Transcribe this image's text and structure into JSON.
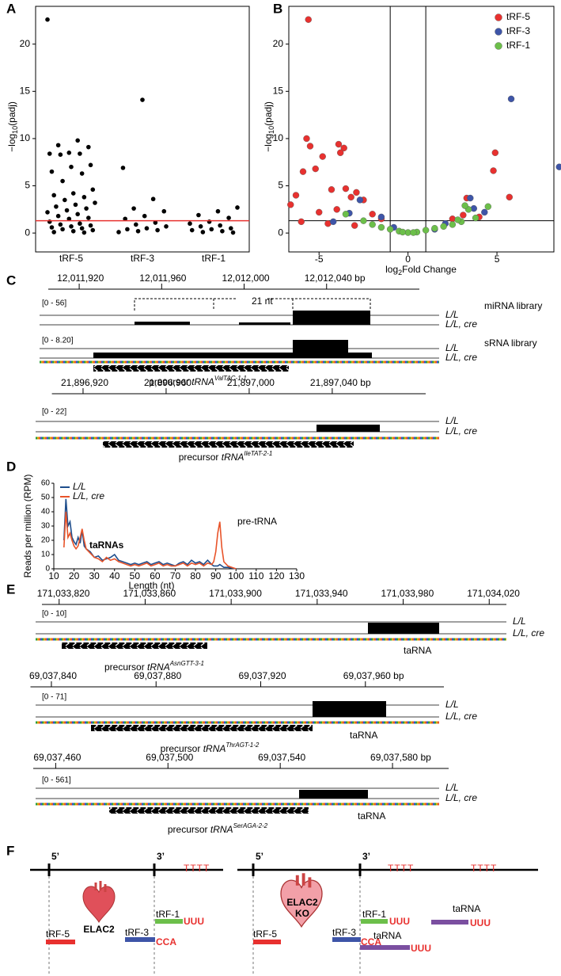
{
  "panel_labels": [
    "A",
    "B",
    "C",
    "D",
    "E",
    "F"
  ],
  "chart_data": [
    {
      "type": "strip",
      "ylabel": {
        "pre": "−log",
        "sub": "10",
        "post": "(padj)"
      },
      "categories": [
        "tRF-5",
        "tRF-3",
        "tRF-1"
      ],
      "color": "#000000",
      "values": [
        [
          22.6,
          9.8,
          9.3,
          9.1,
          8.5,
          8.4,
          8.4,
          8.3,
          7.2,
          7.0,
          6.5,
          6.3,
          5.5,
          4.6,
          4.2,
          4.0,
          3.8,
          3.5,
          3.2,
          3.0,
          2.8,
          2.6,
          2.4,
          2.2,
          2.0,
          1.8,
          1.6,
          1.5,
          1.2,
          1.0,
          0.9,
          0.8,
          0.7,
          0.6,
          0.5,
          0.4,
          0.3,
          0.2,
          0.1,
          0.05
        ],
        [
          14.1,
          6.9,
          3.6,
          2.6,
          2.3,
          1.8,
          1.5,
          1.1,
          0.9,
          0.7,
          0.5,
          0.4,
          0.3,
          0.2,
          0.1
        ],
        [
          2.7,
          2.3,
          1.9,
          1.6,
          1.2,
          1.0,
          0.8,
          0.7,
          0.5,
          0.4,
          0.3,
          0.2,
          0.1,
          0.05
        ]
      ],
      "ylim": [
        -2,
        24
      ],
      "yticks": [
        0,
        5,
        10,
        15,
        20
      ],
      "hline": 1.3,
      "hline_color": "#e8312f"
    },
    {
      "type": "scatter",
      "xlabel": {
        "pre": "log",
        "sub": "2",
        "post": "Fold Change"
      },
      "ylabel": {
        "pre": "−log",
        "sub": "10",
        "post": "(padj)"
      },
      "series": [
        {
          "name": "tRF-5",
          "color": "#e8312f",
          "x": [
            -5.6,
            -5.7,
            -5.5,
            -3.9,
            -3.6,
            -3.8,
            -4.8,
            4.9,
            4.8,
            -5.9,
            -5.2,
            -4.3,
            -3.5,
            -2.9,
            -3.2,
            -2.5,
            -6.3,
            -6.6,
            5.7,
            3.3,
            -5.0,
            -4.0,
            -2.0,
            -1.5,
            -6.0,
            -4.5,
            2.5,
            4.0,
            3.1,
            -3.0
          ],
          "y": [
            22.6,
            10.0,
            9.2,
            9.4,
            9.0,
            8.5,
            8.1,
            8.5,
            6.6,
            6.5,
            6.8,
            4.6,
            4.7,
            4.3,
            3.8,
            3.5,
            4.0,
            3.0,
            3.8,
            3.7,
            2.2,
            2.5,
            2.0,
            1.5,
            1.2,
            1.0,
            1.5,
            1.7,
            1.9,
            0.8
          ]
        },
        {
          "name": "tRF-3",
          "color": "#3e55a8",
          "x": [
            5.8,
            8.5,
            3.5,
            -2.7,
            -1.5,
            4.3,
            -4.2,
            2.1,
            -0.8,
            3.7,
            -3.3,
            1.5
          ],
          "y": [
            14.2,
            7.0,
            3.7,
            3.5,
            1.7,
            2.2,
            1.2,
            1.0,
            0.6,
            2.6,
            2.1,
            0.4
          ]
        },
        {
          "name": "tRF-1",
          "color": "#6cbf4a",
          "x": [
            -1.5,
            -1.0,
            -0.5,
            0.0,
            0.5,
            1.0,
            1.5,
            2.0,
            2.5,
            3.0,
            3.4,
            3.8,
            -2.0,
            -2.5,
            4.5,
            -3.5,
            0.3,
            -0.3,
            2.8,
            3.2
          ],
          "y": [
            0.6,
            0.4,
            0.2,
            0.05,
            0.1,
            0.3,
            0.5,
            0.7,
            0.9,
            1.2,
            2.5,
            1.6,
            0.9,
            1.3,
            2.8,
            2.0,
            0.05,
            0.1,
            1.4,
            2.9
          ]
        }
      ],
      "xlim": [
        -6.7,
        8.2
      ],
      "xticks": [
        -5,
        0,
        5
      ],
      "ylim": [
        -2,
        24
      ],
      "yticks": [
        0,
        5,
        10,
        15,
        20
      ],
      "vlines": [
        -1,
        1
      ],
      "hline": 1.3,
      "legend": "upper right"
    },
    {
      "type": "line",
      "ylabel": "Reads per million (RPM)",
      "xlabel": "Length (nt)",
      "x": [
        15,
        16,
        17,
        18,
        19,
        20,
        21,
        22,
        23,
        24,
        25,
        26,
        28,
        30,
        32,
        34,
        36,
        38,
        40,
        42,
        44,
        46,
        48,
        50,
        52,
        54,
        56,
        58,
        60,
        62,
        64,
        66,
        68,
        70,
        72,
        74,
        76,
        78,
        80,
        82,
        84,
        86,
        88,
        89,
        90,
        91,
        92,
        93,
        94,
        96,
        98,
        100
      ],
      "series": [
        {
          "name": "L/L",
          "color": "#1f4e8c",
          "values": [
            20,
            49,
            30,
            33,
            22,
            19,
            17,
            22,
            18,
            27,
            16,
            14,
            12,
            8,
            9,
            6,
            7,
            8,
            10,
            6,
            5,
            4,
            3,
            4,
            3,
            4,
            5,
            3,
            4,
            5,
            3,
            4,
            3,
            2,
            4,
            5,
            3,
            6,
            4,
            5,
            3,
            6,
            3,
            2,
            2,
            2,
            3,
            2,
            1,
            1,
            0.5,
            0
          ]
        },
        {
          "name": "L/L, cre",
          "color": "#e8542a",
          "values": [
            15,
            40,
            22,
            25,
            20,
            16,
            14,
            16,
            22,
            28,
            20,
            14,
            11,
            8,
            7,
            5,
            8,
            6,
            7,
            5,
            4,
            3,
            2,
            3,
            2,
            3,
            4,
            2,
            3,
            4,
            2,
            3,
            2,
            2,
            3,
            4,
            2,
            4,
            3,
            4,
            2,
            4,
            3,
            5,
            12,
            25,
            33,
            15,
            5,
            2,
            1,
            0
          ]
        }
      ],
      "xlim": [
        10,
        130
      ],
      "xticks": [
        10,
        20,
        30,
        40,
        50,
        60,
        70,
        80,
        90,
        100,
        110,
        120,
        130
      ],
      "ylim": [
        0,
        60
      ],
      "yticks": [
        0,
        10,
        20,
        30,
        40,
        50,
        60
      ],
      "legend": "upper left",
      "annotations": [
        "taRNAs",
        "pre-tRNA"
      ]
    }
  ],
  "genome_tracks": [
    {
      "ruler": {
        "xlim": [
          12011905,
          12012085
        ],
        "ticks": [
          {
            "value": 12011920,
            "label": "12,011,920"
          },
          {
            "value": 12011960,
            "label": "12,011,960"
          },
          {
            "value": 12012000,
            "label": "12,012,000"
          },
          {
            "value": 12012040,
            "label": "12,012,040 bp"
          }
        ]
      },
      "groups": [
        {
          "range": "[0 - 56]",
          "library": "miRNA library",
          "tracks": [
            "L/L",
            "L/L, cre"
          ]
        },
        {
          "range": "[0 - 8.20]",
          "library": "sRNA library",
          "tracks": [
            "L/L",
            "L/L, cre"
          ]
        }
      ],
      "gene": {
        "prefix": "precursor ",
        "name": "tRNA",
        "superscript": "ValTAC-1-1"
      },
      "annotation": "21 nt"
    },
    {
      "ruler": {
        "xlim": [
          21896905,
          21897085
        ],
        "ticks": [
          {
            "value": 21896920,
            "label": "21,896,920"
          },
          {
            "value": 21896960,
            "label": "21,896,960"
          },
          {
            "value": 21897000,
            "label": "21,897,000"
          },
          {
            "value": 21897040,
            "label": "21,897,040 bp"
          }
        ]
      },
      "groups": [
        {
          "range": "[0 - 22]",
          "tracks": [
            "L/L",
            "L/L, cre"
          ]
        }
      ],
      "gene": {
        "prefix": "precursor ",
        "name": "tRNA",
        "superscript": "IleTAT-2-1"
      }
    },
    {
      "ruler": {
        "xlim": [
          171033812,
          171034028
        ],
        "ticks": [
          {
            "value": 171033820,
            "label": "171,033,820"
          },
          {
            "value": 171033860,
            "label": "171,033,860"
          },
          {
            "value": 171033900,
            "label": "171,033,900"
          },
          {
            "value": 171033940,
            "label": "171,033,940"
          },
          {
            "value": 171033980,
            "label": "171,033,980"
          },
          {
            "value": 171034020,
            "label": "171,034,020"
          }
        ]
      },
      "groups": [
        {
          "range": "[0 - 10]",
          "tracks": [
            "L/L",
            "L/L, cre"
          ]
        }
      ],
      "gene": {
        "prefix": "precursor ",
        "name": "tRNA",
        "superscript": "AsnGTT-3-1"
      },
      "annotation": "taRNA"
    },
    {
      "ruler": {
        "xlim": [
          69037832,
          69037990
        ],
        "ticks": [
          {
            "value": 69037840,
            "label": "69,037,840"
          },
          {
            "value": 69037880,
            "label": "69,037,880"
          },
          {
            "value": 69037920,
            "label": "69,037,920"
          },
          {
            "value": 69037960,
            "label": "69,037,960 bp"
          }
        ]
      },
      "groups": [
        {
          "range": "[0 - 71]",
          "tracks": [
            "L/L",
            "L/L, cre"
          ]
        }
      ],
      "gene": {
        "prefix": "precursor ",
        "name": "tRNA",
        "superscript": "ThrAGT-1-2"
      },
      "annotation": "taRNA"
    },
    {
      "ruler": {
        "xlim": [
          69037452,
          69037600
        ],
        "ticks": [
          {
            "value": 69037460,
            "label": "69,037,460"
          },
          {
            "value": 69037500,
            "label": "69,037,500"
          },
          {
            "value": 69037540,
            "label": "69,037,540"
          },
          {
            "value": 69037580,
            "label": "69,037,580 bp"
          }
        ]
      },
      "groups": [
        {
          "range": "[0 - 561]",
          "tracks": [
            "L/L",
            "L/L, cre"
          ]
        }
      ],
      "gene": {
        "prefix": "precursor ",
        "name": "tRNA",
        "superscript": "SerAGA-2-2"
      },
      "annotation": "taRNA"
    }
  ],
  "diagram": {
    "left": {
      "five_prime": "5’",
      "three_prime": "3’",
      "terminators": [
        "TTTT"
      ],
      "enzyme": [
        "ELAC2"
      ],
      "fragments": [
        {
          "label": "tRF-5"
        },
        {
          "label": "tRF-1",
          "tail": "UUU"
        },
        {
          "label": "tRF-3",
          "tail": "CCA"
        }
      ]
    },
    "right": {
      "five_prime": "5’",
      "three_prime": "3’",
      "terminators": [
        "TTTT",
        "TTTT"
      ],
      "enzyme": [
        "ELAC2",
        "KO"
      ],
      "fragments": [
        {
          "label": "tRF-5"
        },
        {
          "label": "tRF-1",
          "tail": "UUU"
        },
        {
          "label": "tRF-3",
          "tail": "CCA"
        },
        {
          "label": "taRNA",
          "tail": "UUU"
        },
        {
          "label": "taRNA",
          "tail": "UUU"
        }
      ]
    }
  }
}
